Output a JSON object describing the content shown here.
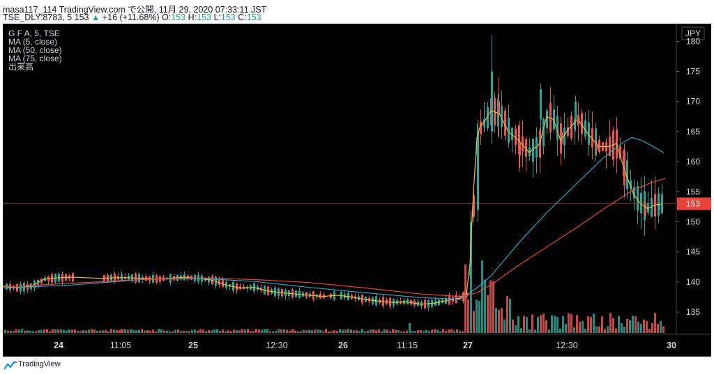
{
  "header": {
    "line1": "masa117_114 TradingView.com で公開, 11月 29, 2020 07:33:11 JST",
    "symbol": "TSE_DLY:8783, 5 153",
    "change_arrow": "▲",
    "change": "+16 (+11.68%)",
    "o_label": "O:",
    "o_value": "153",
    "h_label": "H:",
    "h_value": "153",
    "l_label": "L:",
    "l_value": "153",
    "c_label": "C:",
    "c_value": "153"
  },
  "legend": {
    "symbol_line": "G F A, 5, TSE",
    "ma5": "MA (5, close)",
    "ma50": "MA (50, close)",
    "ma75": "MA (75, close)",
    "volume": "出来高"
  },
  "footer": {
    "brand": "TradingView"
  },
  "colors": {
    "background": "#000000",
    "up": "#26a69a",
    "down": "#ef5350",
    "ma5": "#e6c229",
    "ma50": "#26a5c9",
    "ma75": "#e8443a",
    "text": "#d1d4dc",
    "last_price_bg": "#e8443a"
  },
  "chart_data": {
    "type": "candlestick",
    "currency": "JPY",
    "last_price": 153,
    "ylim": [
      132,
      182
    ],
    "y_ticks": [
      135,
      140,
      145,
      150,
      155,
      160,
      165,
      170,
      175,
      180
    ],
    "x_tick_labels": [
      "24",
      "11:05",
      "25",
      "12:30",
      "26",
      "11:15",
      "27",
      "12:30",
      "30"
    ],
    "x_ticks_bold": [
      "24",
      "25",
      "26",
      "27",
      "30"
    ],
    "grid": false,
    "legend_position": "top-left",
    "series": [
      {
        "name": "MA (5, close)",
        "type": "line",
        "points": [
          [
            0,
            139.3
          ],
          [
            20,
            139.0
          ],
          [
            40,
            139.3
          ],
          [
            60,
            140.5
          ],
          [
            80,
            140.7
          ],
          [
            100,
            140.8
          ],
          [
            120,
            140.7
          ],
          [
            140,
            140.6
          ],
          [
            160,
            140.7
          ],
          [
            180,
            140.7
          ],
          [
            200,
            140.6
          ],
          [
            220,
            140.5
          ],
          [
            240,
            140.6
          ],
          [
            260,
            140.8
          ],
          [
            280,
            140.6
          ],
          [
            300,
            140.3
          ],
          [
            320,
            139.5
          ],
          [
            340,
            139.0
          ],
          [
            360,
            139.1
          ],
          [
            380,
            138.5
          ],
          [
            400,
            138.2
          ],
          [
            420,
            138.0
          ],
          [
            440,
            137.8
          ],
          [
            460,
            137.6
          ],
          [
            480,
            137.8
          ],
          [
            500,
            137.5
          ],
          [
            520,
            137.1
          ],
          [
            540,
            136.8
          ],
          [
            560,
            136.6
          ],
          [
            580,
            136.7
          ],
          [
            600,
            136.3
          ],
          [
            620,
            136.5
          ],
          [
            640,
            137.0
          ],
          [
            655,
            137.3
          ],
          [
            665,
            138.0
          ],
          [
            670,
            143.0
          ],
          [
            675,
            155.0
          ],
          [
            680,
            164.0
          ],
          [
            685,
            166.0
          ],
          [
            690,
            166.5
          ],
          [
            700,
            168.5
          ],
          [
            712,
            168.0
          ],
          [
            725,
            165.0
          ],
          [
            740,
            163.5
          ],
          [
            755,
            161.5
          ],
          [
            770,
            163.0
          ],
          [
            780,
            167.5
          ],
          [
            790,
            167.0
          ],
          [
            800,
            163.5
          ],
          [
            812,
            165.5
          ],
          [
            825,
            167.0
          ],
          [
            840,
            164.5
          ],
          [
            855,
            162.5
          ],
          [
            868,
            162.5
          ],
          [
            880,
            163.0
          ],
          [
            888,
            160.0
          ],
          [
            895,
            157.5
          ],
          [
            905,
            154.5
          ],
          [
            915,
            153.0
          ],
          [
            925,
            152.2
          ],
          [
            935,
            152.8
          ],
          [
            945,
            153.0
          ]
        ]
      },
      {
        "name": "MA (50, close)",
        "type": "line",
        "points": [
          [
            0,
            139.0
          ],
          [
            100,
            139.5
          ],
          [
            200,
            140.4
          ],
          [
            280,
            140.6
          ],
          [
            360,
            140.1
          ],
          [
            440,
            139.1
          ],
          [
            520,
            138.2
          ],
          [
            600,
            137.4
          ],
          [
            655,
            137.1
          ],
          [
            680,
            139.0
          ],
          [
            700,
            141.0
          ],
          [
            740,
            146.5
          ],
          [
            780,
            151.5
          ],
          [
            820,
            156.0
          ],
          [
            860,
            160.5
          ],
          [
            890,
            163.2
          ],
          [
            902,
            164.0
          ],
          [
            915,
            163.6
          ],
          [
            930,
            162.7
          ],
          [
            948,
            161.5
          ]
        ]
      },
      {
        "name": "MA (75, close)",
        "type": "line",
        "points": [
          [
            0,
            139.2
          ],
          [
            100,
            139.8
          ],
          [
            200,
            140.4
          ],
          [
            280,
            140.7
          ],
          [
            360,
            140.4
          ],
          [
            440,
            139.9
          ],
          [
            520,
            139.0
          ],
          [
            600,
            138.0
          ],
          [
            655,
            137.6
          ],
          [
            680,
            138.2
          ],
          [
            700,
            139.5
          ],
          [
            740,
            142.8
          ],
          [
            780,
            145.8
          ],
          [
            820,
            148.8
          ],
          [
            860,
            152.0
          ],
          [
            900,
            155.0
          ],
          [
            930,
            156.5
          ],
          [
            950,
            157.2
          ]
        ]
      }
    ],
    "candles_approx": [
      {
        "x": 670,
        "open": 143,
        "close": 150,
        "high": 152,
        "low": 141
      },
      {
        "x": 680,
        "open": 152,
        "close": 165,
        "high": 167,
        "low": 150
      },
      {
        "x": 700,
        "open": 165,
        "close": 175,
        "high": 181,
        "low": 163
      },
      {
        "x": 710,
        "open": 170,
        "close": 168,
        "high": 174,
        "low": 164
      },
      {
        "x": 740,
        "open": 163,
        "close": 161,
        "high": 165,
        "low": 159
      },
      {
        "x": 770,
        "open": 167,
        "close": 172,
        "high": 173,
        "low": 165
      },
      {
        "x": 800,
        "open": 165,
        "close": 163,
        "high": 166,
        "low": 162
      },
      {
        "x": 820,
        "open": 167,
        "close": 170,
        "high": 171,
        "low": 165
      },
      {
        "x": 850,
        "open": 163,
        "close": 162,
        "high": 164,
        "low": 161
      },
      {
        "x": 890,
        "open": 162,
        "close": 156,
        "high": 163,
        "low": 154
      },
      {
        "x": 920,
        "open": 153,
        "close": 151,
        "high": 154,
        "low": 151
      },
      {
        "x": 940,
        "open": 152,
        "close": 153,
        "high": 154,
        "low": 152
      }
    ]
  }
}
